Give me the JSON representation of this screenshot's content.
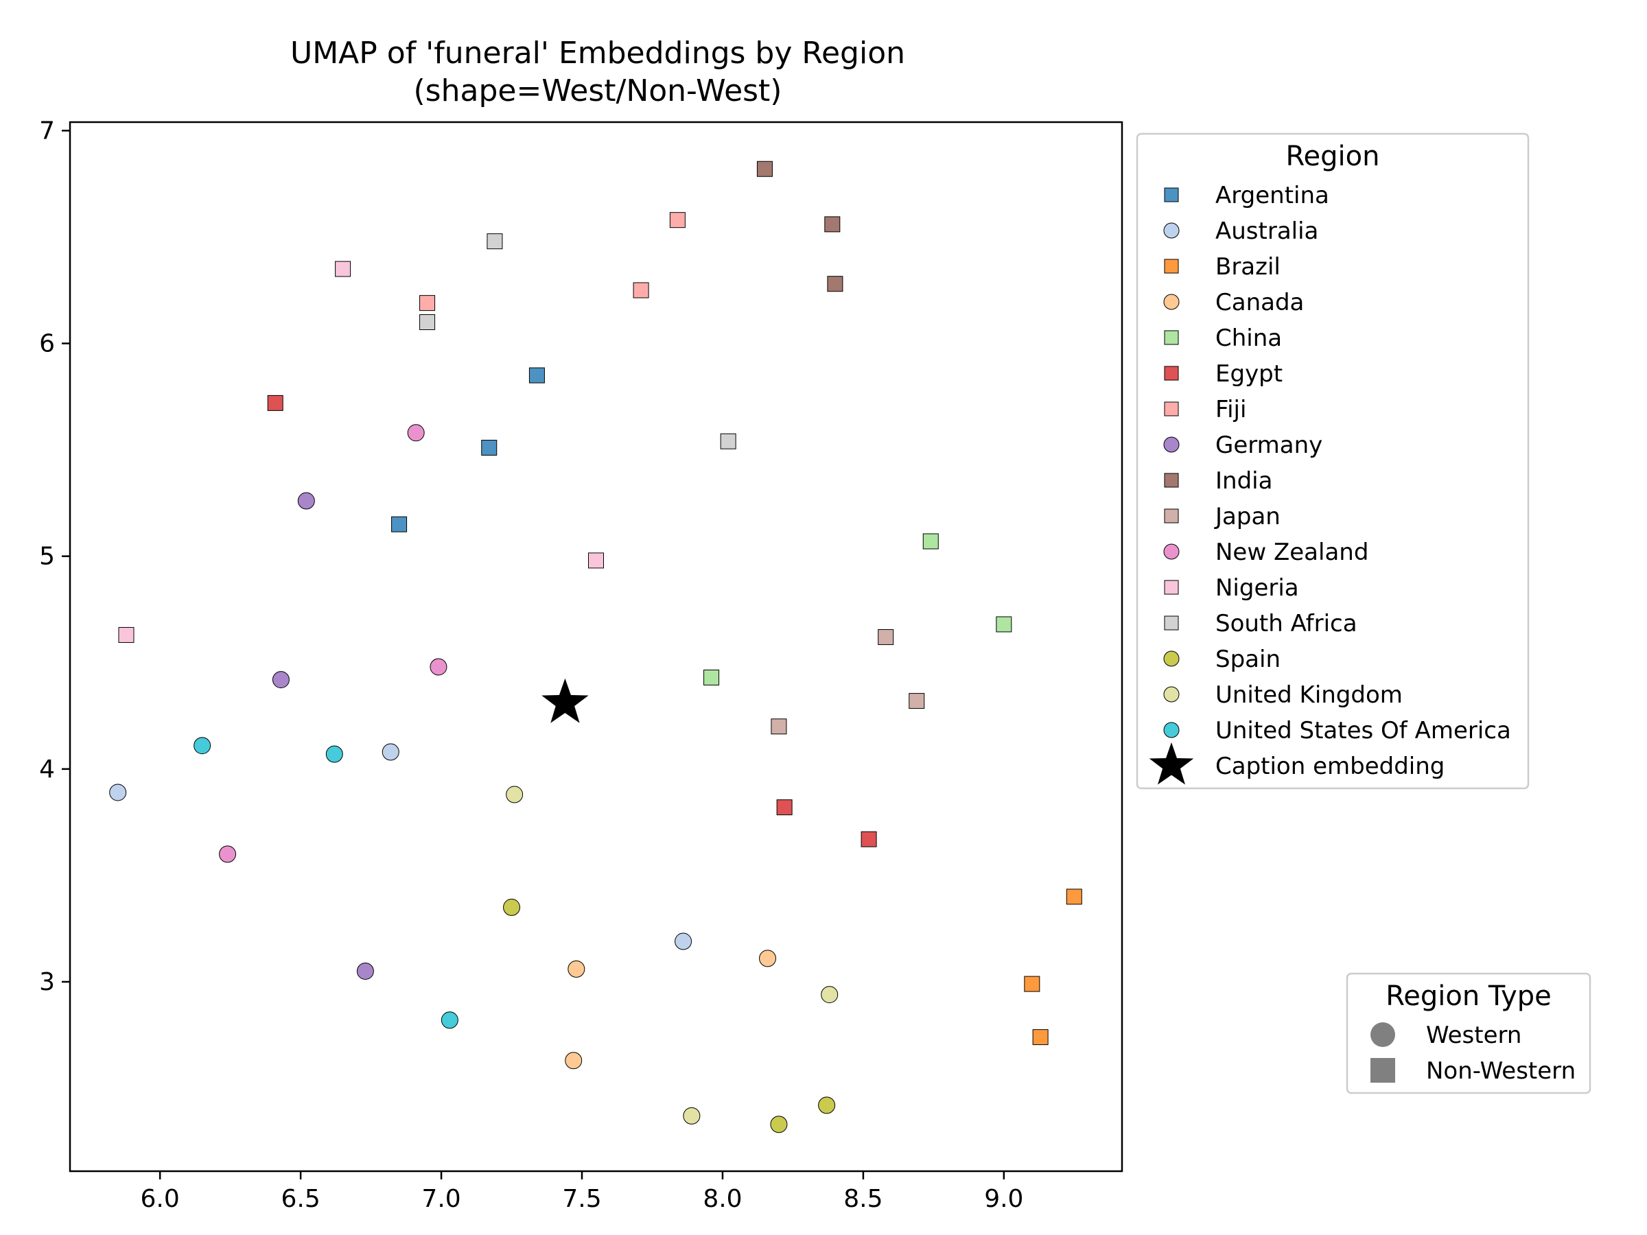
{
  "chart_data": {
    "type": "scatter",
    "title_line1": "UMAP of 'funeral' Embeddings by Region",
    "title_line2": "(shape=West/Non-West)",
    "xlabel": "",
    "ylabel": "",
    "xlim": [
      5.68,
      9.42
    ],
    "ylim": [
      2.11,
      7.04
    ],
    "x_ticks": [
      6.0,
      6.5,
      7.0,
      7.5,
      8.0,
      8.5,
      9.0
    ],
    "x_tick_labels": [
      "6.0",
      "6.5",
      "7.0",
      "7.5",
      "8.0",
      "8.5",
      "9.0"
    ],
    "y_ticks": [
      3,
      4,
      5,
      6,
      7
    ],
    "y_tick_labels": [
      "3",
      "4",
      "5",
      "6",
      "7"
    ],
    "grid": false,
    "legend_title": "Region",
    "legend_placement": "outside right, top",
    "shape_legend_title": "Region Type",
    "shape_legend_placement": "outside right, bottom",
    "shape_legend": [
      {
        "label": "Western",
        "marker": "circle"
      },
      {
        "label": "Non-Western",
        "marker": "square"
      }
    ],
    "caption_label": "Caption embedding",
    "caption_point": {
      "x": 7.44,
      "y": 4.31
    },
    "series": [
      {
        "name": "Argentina",
        "color": "#1f77b4",
        "marker": "square",
        "points": [
          [
            7.34,
            5.85
          ],
          [
            7.17,
            5.51
          ],
          [
            6.85,
            5.15
          ]
        ]
      },
      {
        "name": "Australia",
        "color": "#aec7e8",
        "marker": "circle",
        "points": [
          [
            5.85,
            3.89
          ],
          [
            6.82,
            4.08
          ],
          [
            7.86,
            3.19
          ]
        ]
      },
      {
        "name": "Brazil",
        "color": "#ff7f0e",
        "marker": "square",
        "points": [
          [
            9.25,
            3.4
          ],
          [
            9.1,
            2.99
          ],
          [
            9.13,
            2.74
          ]
        ]
      },
      {
        "name": "Canada",
        "color": "#ffbb78",
        "marker": "circle",
        "points": [
          [
            7.48,
            3.06
          ],
          [
            8.16,
            3.11
          ],
          [
            7.47,
            2.63
          ]
        ]
      },
      {
        "name": "China",
        "color": "#98df8a",
        "marker": "square",
        "points": [
          [
            8.74,
            5.07
          ],
          [
            9.0,
            4.68
          ],
          [
            7.96,
            4.43
          ]
        ]
      },
      {
        "name": "Egypt",
        "color": "#d62728",
        "marker": "square",
        "points": [
          [
            6.41,
            5.72
          ],
          [
            8.22,
            3.82
          ],
          [
            8.52,
            3.67
          ]
        ]
      },
      {
        "name": "Fiji",
        "color": "#ff9896",
        "marker": "square",
        "points": [
          [
            7.84,
            6.58
          ],
          [
            6.95,
            6.19
          ],
          [
            7.71,
            6.25
          ]
        ]
      },
      {
        "name": "Germany",
        "color": "#9467bd",
        "marker": "circle",
        "points": [
          [
            6.52,
            5.26
          ],
          [
            6.43,
            4.42
          ],
          [
            6.73,
            3.05
          ]
        ]
      },
      {
        "name": "India",
        "color": "#8c564b",
        "marker": "square",
        "points": [
          [
            8.15,
            6.82
          ],
          [
            8.39,
            6.56
          ],
          [
            8.4,
            6.28
          ]
        ]
      },
      {
        "name": "Japan",
        "color": "#c49c94",
        "marker": "square",
        "points": [
          [
            8.58,
            4.62
          ],
          [
            8.69,
            4.32
          ],
          [
            8.2,
            4.2
          ]
        ]
      },
      {
        "name": "New Zealand",
        "color": "#e377c2",
        "marker": "circle",
        "points": [
          [
            6.91,
            5.58
          ],
          [
            6.99,
            4.48
          ],
          [
            6.24,
            3.6
          ]
        ]
      },
      {
        "name": "Nigeria",
        "color": "#f7b6d2",
        "marker": "square",
        "points": [
          [
            6.65,
            6.35
          ],
          [
            7.55,
            4.98
          ],
          [
            5.88,
            4.63
          ]
        ]
      },
      {
        "name": "South Africa",
        "color": "#c7c7c7",
        "marker": "square",
        "points": [
          [
            7.19,
            6.48
          ],
          [
            6.95,
            6.1
          ],
          [
            8.02,
            5.54
          ]
        ]
      },
      {
        "name": "Spain",
        "color": "#bcbd22",
        "marker": "circle",
        "points": [
          [
            7.25,
            3.35
          ],
          [
            8.37,
            2.42
          ],
          [
            8.2,
            2.33
          ]
        ]
      },
      {
        "name": "United Kingdom",
        "color": "#dbdb8d",
        "marker": "circle",
        "points": [
          [
            7.26,
            3.88
          ],
          [
            8.38,
            2.94
          ],
          [
            7.89,
            2.37
          ]
        ]
      },
      {
        "name": "United States Of America",
        "color": "#17becf",
        "marker": "circle",
        "points": [
          [
            6.15,
            4.11
          ],
          [
            6.62,
            4.07
          ],
          [
            7.03,
            2.82
          ]
        ]
      }
    ]
  }
}
